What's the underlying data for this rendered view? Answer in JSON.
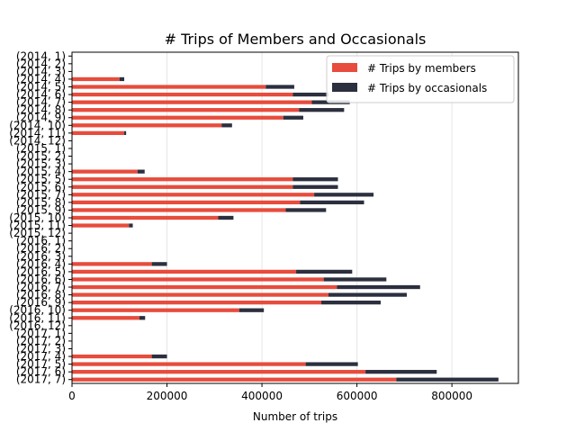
{
  "chart_data": {
    "type": "bar",
    "orientation": "horizontal",
    "stacked": true,
    "title": "# Trips of Members and Occasionals",
    "xlabel": "Number of trips",
    "ylabel": "",
    "xlim": [
      0,
      940000
    ],
    "xticks": [
      0,
      200000,
      400000,
      600000,
      800000
    ],
    "xtick_labels": [
      "0",
      "200000",
      "400000",
      "600000",
      "800000"
    ],
    "grid": "vertical",
    "legend_position": "top-right",
    "categories": [
      "(2014, 1)",
      "(2014, 2)",
      "(2014, 3)",
      "(2014, 4)",
      "(2014, 5)",
      "(2014, 6)",
      "(2014, 7)",
      "(2014, 8)",
      "(2014, 9)",
      "(2014, 10)",
      "(2014, 11)",
      "(2014, 12)",
      "(2015, 1)",
      "(2015, 2)",
      "(2015, 3)",
      "(2015, 4)",
      "(2015, 5)",
      "(2015, 6)",
      "(2015, 7)",
      "(2015, 8)",
      "(2015, 9)",
      "(2015, 10)",
      "(2015, 11)",
      "(2015, 12)",
      "(2016, 1)",
      "(2016, 2)",
      "(2016, 3)",
      "(2016, 4)",
      "(2016, 5)",
      "(2016, 6)",
      "(2016, 7)",
      "(2016, 8)",
      "(2016, 9)",
      "(2016, 10)",
      "(2016, 11)",
      "(2016, 12)",
      "(2017, 1)",
      "(2017, 2)",
      "(2017, 3)",
      "(2017, 4)",
      "(2017, 5)",
      "(2017, 6)",
      "(2017, 7)"
    ],
    "series": [
      {
        "name": "# Trips by members",
        "color": "#e74c3c",
        "values": [
          0,
          0,
          0,
          100000,
          408000,
          465000,
          505000,
          478000,
          445000,
          315000,
          110000,
          0,
          0,
          0,
          0,
          138000,
          465000,
          465000,
          510000,
          480000,
          450000,
          308000,
          120000,
          0,
          0,
          0,
          0,
          168000,
          472000,
          530000,
          558000,
          540000,
          525000,
          352000,
          142000,
          0,
          0,
          0,
          0,
          168000,
          492000,
          618000,
          683000
        ]
      },
      {
        "name": "# Trips by occasionals",
        "color": "#2c2f3e",
        "values": [
          0,
          0,
          0,
          10000,
          60000,
          75000,
          80000,
          95000,
          42000,
          22000,
          4000,
          0,
          0,
          0,
          0,
          15000,
          95000,
          95000,
          125000,
          135000,
          85000,
          32000,
          8000,
          0,
          0,
          0,
          0,
          32000,
          118000,
          132000,
          175000,
          165000,
          125000,
          52000,
          12000,
          0,
          0,
          0,
          0,
          32000,
          110000,
          150000,
          215000
        ]
      }
    ]
  }
}
